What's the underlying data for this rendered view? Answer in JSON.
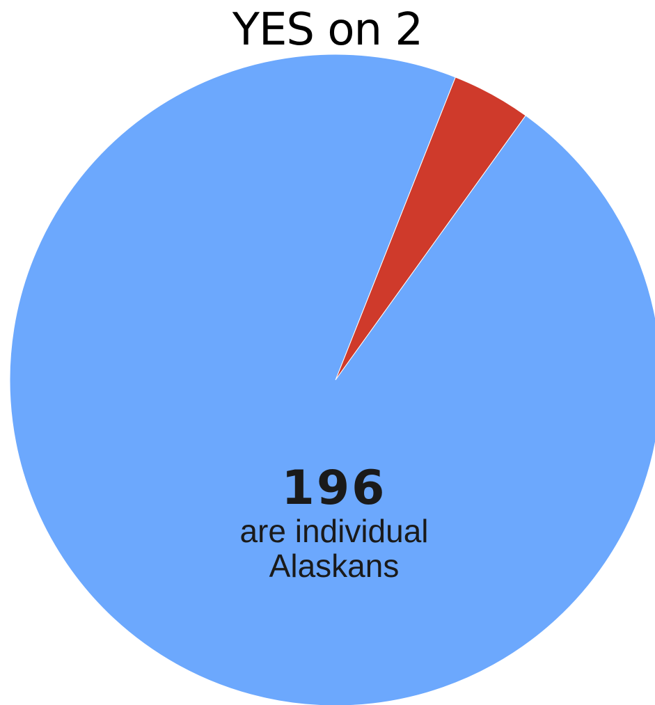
{
  "chart_data": {
    "type": "pie",
    "title": "YES on 2",
    "slices": [
      {
        "value": 196,
        "color": "#6ca8fd"
      },
      {
        "value": 8,
        "color": "#cf3a2b"
      }
    ],
    "callout": {
      "value": "196",
      "line1": "are individual",
      "line2": "Alaskans"
    }
  }
}
